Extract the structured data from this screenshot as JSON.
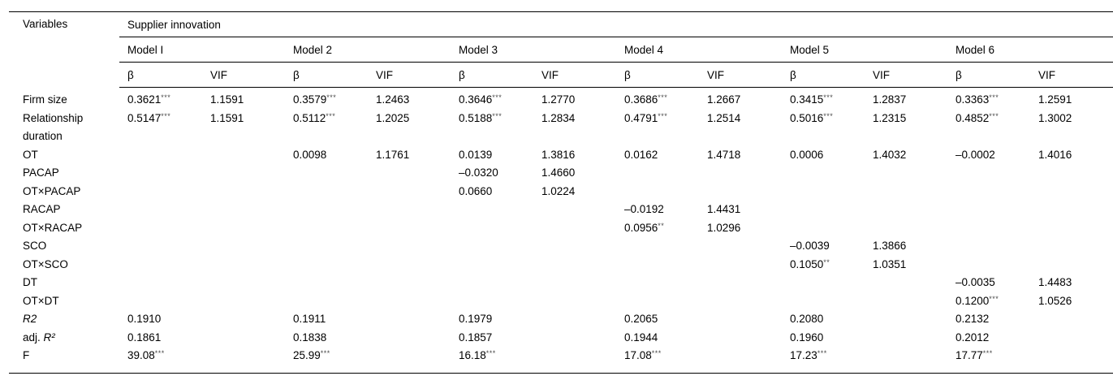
{
  "table": {
    "corner_header": "Variables",
    "group_header": "Supplier innovation",
    "models": [
      "Model I",
      "Model 2",
      "Model 3",
      "Model 4",
      "Model 5",
      "Model 6"
    ],
    "sub_headers": {
      "beta": "β",
      "vif": "VIF"
    },
    "rows": [
      {
        "label": "Firm size",
        "cells": [
          "0.3621***",
          "1.1591",
          "0.3579***",
          "1.2463",
          "0.3646***",
          "1.2770",
          "0.3686***",
          "1.2667",
          "0.3415***",
          "1.2837",
          "0.3363***",
          "1.2591"
        ]
      },
      {
        "label": "Relationship duration",
        "cells": [
          "0.5147***",
          "1.1591",
          "0.5112***",
          "1.2025",
          "0.5188***",
          "1.2834",
          "0.4791***",
          "1.2514",
          "0.5016***",
          "1.2315",
          "0.4852***",
          "1.3002"
        ]
      },
      {
        "label": "OT",
        "cells": [
          "",
          "",
          "0.0098",
          "1.1761",
          "0.0139",
          "1.3816",
          "0.0162",
          "1.4718",
          "0.0006",
          "1.4032",
          "–0.0002",
          "1.4016"
        ]
      },
      {
        "label": "PACAP",
        "cells": [
          "",
          "",
          "",
          "",
          "–0.0320",
          "1.4660",
          "",
          "",
          "",
          "",
          "",
          ""
        ]
      },
      {
        "label": "OT×PACAP",
        "cells": [
          "",
          "",
          "",
          "",
          "0.0660",
          "1.0224",
          "",
          "",
          "",
          "",
          "",
          ""
        ]
      },
      {
        "label": "RACAP",
        "cells": [
          "",
          "",
          "",
          "",
          "",
          "",
          "–0.0192",
          "1.4431",
          "",
          "",
          "",
          ""
        ]
      },
      {
        "label": "OT×RACAP",
        "cells": [
          "",
          "",
          "",
          "",
          "",
          "",
          "0.0956**",
          "1.0296",
          "",
          "",
          "",
          ""
        ]
      },
      {
        "label": "SCO",
        "cells": [
          "",
          "",
          "",
          "",
          "",
          "",
          "",
          "",
          "–0.0039",
          "1.3866",
          "",
          ""
        ]
      },
      {
        "label": "OT×SCO",
        "cells": [
          "",
          "",
          "",
          "",
          "",
          "",
          "",
          "",
          "0.1050**",
          "1.0351",
          "",
          ""
        ]
      },
      {
        "label": "DT",
        "cells": [
          "",
          "",
          "",
          "",
          "",
          "",
          "",
          "",
          "",
          "",
          "–0.0035",
          "1.4483"
        ]
      },
      {
        "label": "OT×DT",
        "cells": [
          "",
          "",
          "",
          "",
          "",
          "",
          "",
          "",
          "",
          "",
          "0.1200***",
          "1.0526"
        ]
      },
      {
        "label": "R2",
        "italic": true,
        "cells": [
          "0.1910",
          "",
          "0.1911",
          "",
          "0.1979",
          "",
          "0.2065",
          "",
          "0.2080",
          "",
          "0.2132",
          ""
        ]
      },
      {
        "label": "R²",
        "prefix": "adj. ",
        "italic": true,
        "cells": [
          "0.1861",
          "",
          "0.1838",
          "",
          "0.1857",
          "",
          "0.1944",
          "",
          "0.1960",
          "",
          "0.2012",
          ""
        ]
      },
      {
        "label": "F",
        "cells": [
          "39.08***",
          "",
          "25.99***",
          "",
          "16.18***",
          "",
          "17.08***",
          "",
          "17.23***",
          "",
          "17.77***",
          ""
        ]
      }
    ]
  }
}
